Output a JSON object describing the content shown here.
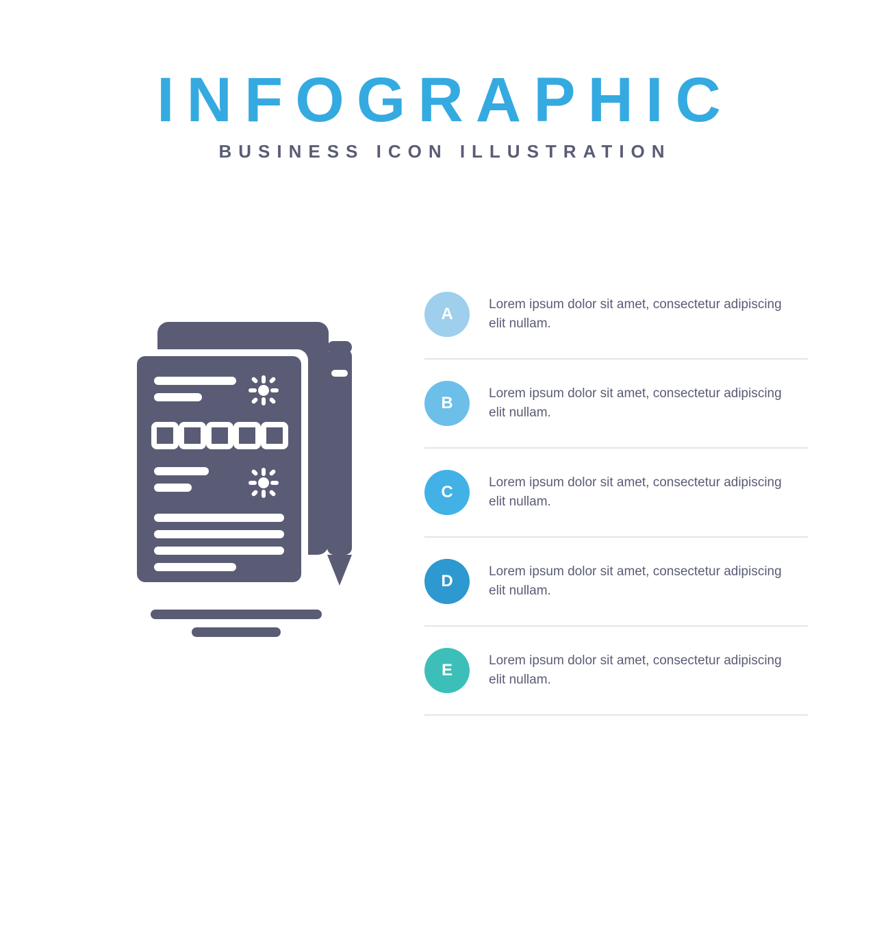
{
  "colors": {
    "title": "#35aae0",
    "subtitle": "#5a5c75",
    "icon": "#5a5c75",
    "desc": "#5a5c75",
    "divider": "#e3e5e8",
    "background": "#ffffff"
  },
  "header": {
    "title": "INFOGRAPHIC",
    "subtitle": "BUSINESS ICON ILLUSTRATION",
    "title_fontsize": 92,
    "subtitle_fontsize": 26,
    "title_letter_spacing": 18,
    "subtitle_letter_spacing": 10
  },
  "icon": {
    "name": "document-pencil-icon",
    "fill": "#5a5c75"
  },
  "list": {
    "items": [
      {
        "letter": "A",
        "color": "#9ecfec",
        "text": "Lorem ipsum dolor sit amet, consectetur adipiscing elit nullam."
      },
      {
        "letter": "B",
        "color": "#6cbfe9",
        "text": "Lorem ipsum dolor sit amet, consectetur adipiscing elit nullam."
      },
      {
        "letter": "C",
        "color": "#42b1e5",
        "text": "Lorem ipsum dolor sit amet, consectetur adipiscing elit nullam."
      },
      {
        "letter": "D",
        "color": "#2d99d0",
        "text": "Lorem ipsum dolor sit amet, consectetur adipiscing elit nullam."
      },
      {
        "letter": "E",
        "color": "#3cbfb8",
        "text": "Lorem ipsum dolor sit amet, consectetur adipiscing elit nullam."
      }
    ],
    "badge_size": 66,
    "desc_fontsize": 19
  }
}
